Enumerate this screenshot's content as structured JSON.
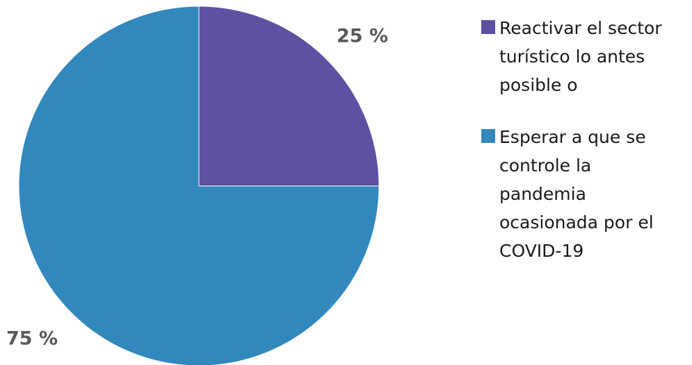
{
  "chart_data": {
    "type": "pie",
    "slices": [
      {
        "label": "Reactivar el sector turístico lo antes posible o",
        "value": 25,
        "display": "25 %",
        "color": "#5f50a2"
      },
      {
        "label": "Esperar a que se controle la pandemia ocasionada por el COVID-19",
        "value": 75,
        "display": "75 %",
        "color": "#3288bd"
      }
    ],
    "legend_position": "right"
  }
}
